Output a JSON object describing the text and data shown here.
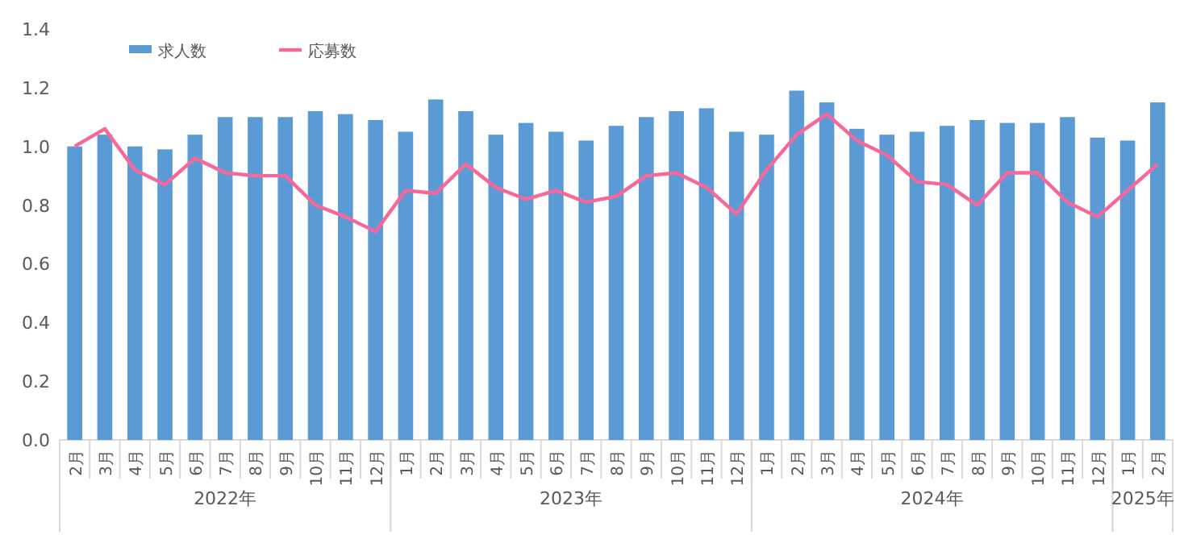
{
  "chart_data": {
    "type": "bar",
    "categories": [
      "2月",
      "3月",
      "4月",
      "5月",
      "6月",
      "7月",
      "8月",
      "9月",
      "10月",
      "11月",
      "12月",
      "1月",
      "2月",
      "3月",
      "4月",
      "5月",
      "6月",
      "7月",
      "8月",
      "9月",
      "10月",
      "11月",
      "12月",
      "1月",
      "2月",
      "3月",
      "4月",
      "5月",
      "6月",
      "7月",
      "8月",
      "9月",
      "10月",
      "11月",
      "12月",
      "1月",
      "2月"
    ],
    "annotations": [
      "2022年",
      "2023年",
      "2024年",
      "2025年"
    ],
    "series": [
      {
        "name": "求人数",
        "color": "#5b9bd5",
        "values": [
          1.0,
          1.04,
          1.0,
          0.99,
          1.04,
          1.1,
          1.1,
          1.1,
          1.12,
          1.11,
          1.09,
          1.05,
          1.16,
          1.12,
          1.04,
          1.08,
          1.05,
          1.02,
          1.07,
          1.1,
          1.12,
          1.13,
          1.05,
          1.04,
          1.19,
          1.15,
          1.06,
          1.04,
          1.05,
          1.07,
          1.09,
          1.08,
          1.08,
          1.1,
          1.03,
          1.02,
          1.15
        ]
      },
      {
        "name": "応募数",
        "type": "line",
        "color": "#f7679a",
        "values": [
          1.0,
          1.06,
          0.92,
          0.87,
          0.96,
          0.91,
          0.9,
          0.9,
          0.8,
          0.76,
          0.71,
          0.85,
          0.84,
          0.94,
          0.86,
          0.82,
          0.85,
          0.81,
          0.83,
          0.9,
          0.91,
          0.86,
          0.77,
          0.92,
          1.04,
          1.11,
          1.02,
          0.97,
          0.88,
          0.87,
          0.8,
          0.91,
          0.91,
          0.81,
          0.76,
          0.85,
          0.94
        ]
      }
    ],
    "ylim": [
      0,
      1.4
    ],
    "yticks": [
      {
        "value": 0,
        "label": "0.0"
      },
      {
        "value": 0.2,
        "label": "0.2"
      },
      {
        "value": 0.4,
        "label": "0.4"
      },
      {
        "value": 0.6,
        "label": "0.6"
      },
      {
        "value": 0.8,
        "label": "0.8"
      },
      {
        "value": 1,
        "label": "1.0"
      },
      {
        "value": 1.2,
        "label": "1.2"
      },
      {
        "value": 1.4,
        "label": "1.4"
      }
    ],
    "legend": "top left"
  }
}
